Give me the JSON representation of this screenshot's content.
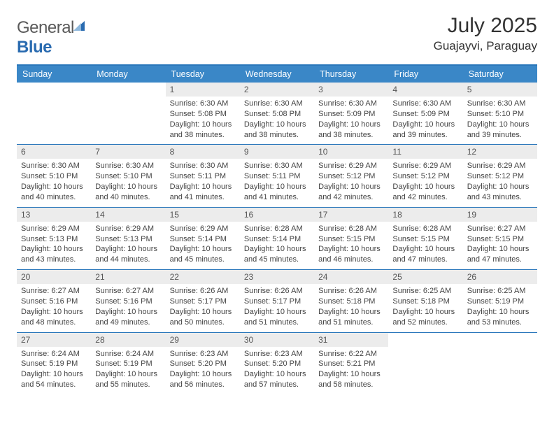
{
  "brand": {
    "g": "General",
    "b": "Blue"
  },
  "header": {
    "month_title": "July 2025",
    "location": "Guajayvi, Paraguay"
  },
  "colors": {
    "header_bg": "#3a87c7",
    "rule": "#2a77bb",
    "daynum_bg": "#ececec",
    "text": "#444444"
  },
  "weekdays": [
    "Sunday",
    "Monday",
    "Tuesday",
    "Wednesday",
    "Thursday",
    "Friday",
    "Saturday"
  ],
  "days": [
    {
      "n": "",
      "sr": "",
      "ss": "",
      "dl": ""
    },
    {
      "n": "",
      "sr": "",
      "ss": "",
      "dl": ""
    },
    {
      "n": "1",
      "sr": "Sunrise: 6:30 AM",
      "ss": "Sunset: 5:08 PM",
      "dl": "Daylight: 10 hours and 38 minutes."
    },
    {
      "n": "2",
      "sr": "Sunrise: 6:30 AM",
      "ss": "Sunset: 5:08 PM",
      "dl": "Daylight: 10 hours and 38 minutes."
    },
    {
      "n": "3",
      "sr": "Sunrise: 6:30 AM",
      "ss": "Sunset: 5:09 PM",
      "dl": "Daylight: 10 hours and 38 minutes."
    },
    {
      "n": "4",
      "sr": "Sunrise: 6:30 AM",
      "ss": "Sunset: 5:09 PM",
      "dl": "Daylight: 10 hours and 39 minutes."
    },
    {
      "n": "5",
      "sr": "Sunrise: 6:30 AM",
      "ss": "Sunset: 5:10 PM",
      "dl": "Daylight: 10 hours and 39 minutes."
    },
    {
      "n": "6",
      "sr": "Sunrise: 6:30 AM",
      "ss": "Sunset: 5:10 PM",
      "dl": "Daylight: 10 hours and 40 minutes."
    },
    {
      "n": "7",
      "sr": "Sunrise: 6:30 AM",
      "ss": "Sunset: 5:10 PM",
      "dl": "Daylight: 10 hours and 40 minutes."
    },
    {
      "n": "8",
      "sr": "Sunrise: 6:30 AM",
      "ss": "Sunset: 5:11 PM",
      "dl": "Daylight: 10 hours and 41 minutes."
    },
    {
      "n": "9",
      "sr": "Sunrise: 6:30 AM",
      "ss": "Sunset: 5:11 PM",
      "dl": "Daylight: 10 hours and 41 minutes."
    },
    {
      "n": "10",
      "sr": "Sunrise: 6:29 AM",
      "ss": "Sunset: 5:12 PM",
      "dl": "Daylight: 10 hours and 42 minutes."
    },
    {
      "n": "11",
      "sr": "Sunrise: 6:29 AM",
      "ss": "Sunset: 5:12 PM",
      "dl": "Daylight: 10 hours and 42 minutes."
    },
    {
      "n": "12",
      "sr": "Sunrise: 6:29 AM",
      "ss": "Sunset: 5:12 PM",
      "dl": "Daylight: 10 hours and 43 minutes."
    },
    {
      "n": "13",
      "sr": "Sunrise: 6:29 AM",
      "ss": "Sunset: 5:13 PM",
      "dl": "Daylight: 10 hours and 43 minutes."
    },
    {
      "n": "14",
      "sr": "Sunrise: 6:29 AM",
      "ss": "Sunset: 5:13 PM",
      "dl": "Daylight: 10 hours and 44 minutes."
    },
    {
      "n": "15",
      "sr": "Sunrise: 6:29 AM",
      "ss": "Sunset: 5:14 PM",
      "dl": "Daylight: 10 hours and 45 minutes."
    },
    {
      "n": "16",
      "sr": "Sunrise: 6:28 AM",
      "ss": "Sunset: 5:14 PM",
      "dl": "Daylight: 10 hours and 45 minutes."
    },
    {
      "n": "17",
      "sr": "Sunrise: 6:28 AM",
      "ss": "Sunset: 5:15 PM",
      "dl": "Daylight: 10 hours and 46 minutes."
    },
    {
      "n": "18",
      "sr": "Sunrise: 6:28 AM",
      "ss": "Sunset: 5:15 PM",
      "dl": "Daylight: 10 hours and 47 minutes."
    },
    {
      "n": "19",
      "sr": "Sunrise: 6:27 AM",
      "ss": "Sunset: 5:15 PM",
      "dl": "Daylight: 10 hours and 47 minutes."
    },
    {
      "n": "20",
      "sr": "Sunrise: 6:27 AM",
      "ss": "Sunset: 5:16 PM",
      "dl": "Daylight: 10 hours and 48 minutes."
    },
    {
      "n": "21",
      "sr": "Sunrise: 6:27 AM",
      "ss": "Sunset: 5:16 PM",
      "dl": "Daylight: 10 hours and 49 minutes."
    },
    {
      "n": "22",
      "sr": "Sunrise: 6:26 AM",
      "ss": "Sunset: 5:17 PM",
      "dl": "Daylight: 10 hours and 50 minutes."
    },
    {
      "n": "23",
      "sr": "Sunrise: 6:26 AM",
      "ss": "Sunset: 5:17 PM",
      "dl": "Daylight: 10 hours and 51 minutes."
    },
    {
      "n": "24",
      "sr": "Sunrise: 6:26 AM",
      "ss": "Sunset: 5:18 PM",
      "dl": "Daylight: 10 hours and 51 minutes."
    },
    {
      "n": "25",
      "sr": "Sunrise: 6:25 AM",
      "ss": "Sunset: 5:18 PM",
      "dl": "Daylight: 10 hours and 52 minutes."
    },
    {
      "n": "26",
      "sr": "Sunrise: 6:25 AM",
      "ss": "Sunset: 5:19 PM",
      "dl": "Daylight: 10 hours and 53 minutes."
    },
    {
      "n": "27",
      "sr": "Sunrise: 6:24 AM",
      "ss": "Sunset: 5:19 PM",
      "dl": "Daylight: 10 hours and 54 minutes."
    },
    {
      "n": "28",
      "sr": "Sunrise: 6:24 AM",
      "ss": "Sunset: 5:19 PM",
      "dl": "Daylight: 10 hours and 55 minutes."
    },
    {
      "n": "29",
      "sr": "Sunrise: 6:23 AM",
      "ss": "Sunset: 5:20 PM",
      "dl": "Daylight: 10 hours and 56 minutes."
    },
    {
      "n": "30",
      "sr": "Sunrise: 6:23 AM",
      "ss": "Sunset: 5:20 PM",
      "dl": "Daylight: 10 hours and 57 minutes."
    },
    {
      "n": "31",
      "sr": "Sunrise: 6:22 AM",
      "ss": "Sunset: 5:21 PM",
      "dl": "Daylight: 10 hours and 58 minutes."
    },
    {
      "n": "",
      "sr": "",
      "ss": "",
      "dl": ""
    },
    {
      "n": "",
      "sr": "",
      "ss": "",
      "dl": ""
    }
  ]
}
